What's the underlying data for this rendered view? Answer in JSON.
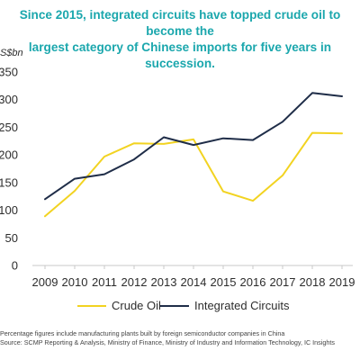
{
  "title_line1": "Since 2015, integrated circuits have topped crude oil to become the",
  "title_line2": "largest category of Chinese imports for five years in succession.",
  "footnote1": "Percentage figures include manufacturing plants built by foreign semiconductor companies in China",
  "footnote2": "Source: SCMP Reporting & Analysis, Ministry of Finance, Ministry of Industry and Information Technology, IC Insights",
  "chart_data": {
    "type": "line",
    "title": "Since 2015, integrated circuits have topped crude oil to become the largest category of Chinese imports for five years in succession.",
    "ylabel": "US$bn",
    "xlabel": "",
    "categories": [
      "2009",
      "2010",
      "2011",
      "2012",
      "2013",
      "2014",
      "2015",
      "2016",
      "2017",
      "2018",
      "2019"
    ],
    "ylim": [
      0,
      350
    ],
    "yticks": [
      0,
      50,
      100,
      150,
      200,
      250,
      300,
      350
    ],
    "grid": false,
    "legend_position": "bottom",
    "series": [
      {
        "name": "Crude Oil",
        "color": "#f2d321",
        "values": [
          89,
          135,
          197,
          221,
          220,
          228,
          134,
          117,
          163,
          240,
          239
        ]
      },
      {
        "name": "Integrated Circuits",
        "color": "#1f2d48",
        "values": [
          120,
          157,
          165,
          192,
          232,
          218,
          230,
          227,
          260,
          312,
          306
        ]
      }
    ]
  }
}
